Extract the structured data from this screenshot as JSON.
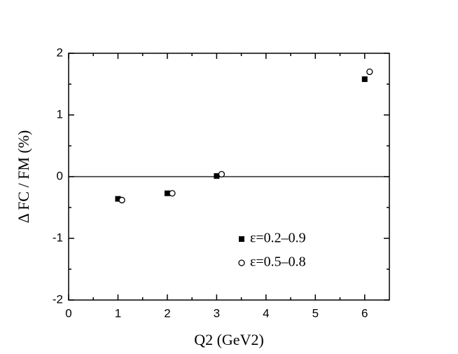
{
  "chart_data": {
    "type": "scatter",
    "x_label": "Q2 (GeV2)",
    "y_label": "Δ FC / FM (%)",
    "xlim": [
      0,
      6.5
    ],
    "ylim": [
      -2,
      2
    ],
    "xticks": [
      0,
      1,
      2,
      3,
      4,
      5,
      6
    ],
    "yticks": [
      -2,
      -1,
      0,
      1,
      2
    ],
    "xminor": [
      0.5,
      1.5,
      2.5,
      3.5,
      4.5,
      5.5
    ],
    "yminor": [
      -1.5,
      -0.5,
      0.5,
      1.5
    ],
    "zero_line": true,
    "legend": "lower right",
    "series": [
      {
        "name": "ε=0.2–0.9",
        "color": "#000000",
        "marker": "square",
        "x": [
          1,
          2,
          3,
          6
        ],
        "values": [
          -0.36,
          -0.27,
          0.01,
          1.58
        ]
      },
      {
        "name": "ε=0.5–0.8",
        "color": "#000000",
        "marker": "open-circle",
        "x": [
          1.08,
          2.1,
          3.1,
          6.1
        ],
        "values": [
          -0.38,
          -0.27,
          0.04,
          1.7
        ]
      }
    ]
  }
}
